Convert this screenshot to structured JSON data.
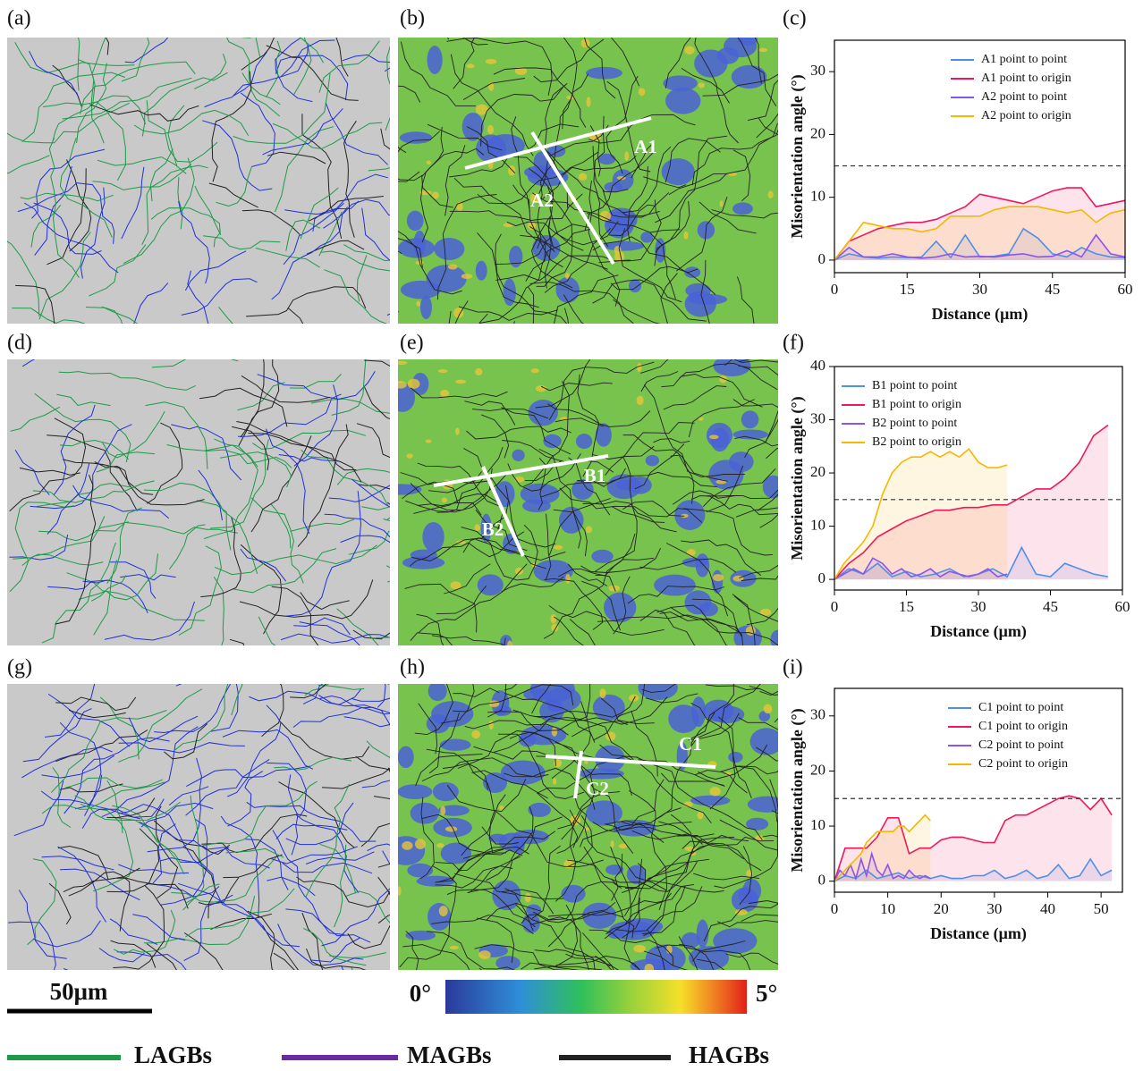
{
  "figure": {
    "panel_labels": [
      "(a)",
      "(b)",
      "(c)",
      "(d)",
      "(e)",
      "(f)",
      "(g)",
      "(h)",
      "(i)"
    ],
    "map_line_labels": [
      "A1",
      "A2",
      "B1",
      "B2",
      "C1",
      "C2"
    ],
    "scale_bar": "50μm",
    "colorbar": {
      "min_label": "0°",
      "max_label": "5°"
    },
    "boundary_legend": [
      {
        "name": "LAGBs",
        "color": "#1f9a48"
      },
      {
        "name": "MAGBs",
        "color": "#6a2aa0"
      },
      {
        "name": "HAGBs",
        "color": "#222222"
      }
    ]
  },
  "chart_data": [
    {
      "type": "line",
      "x_label": "Distance (μm)",
      "y_label": "Misorientation angle (°)",
      "xlim": [
        0,
        60
      ],
      "xticks": [
        0,
        15,
        30,
        45,
        60
      ],
      "ylim": [
        -2,
        35
      ],
      "yticks": [
        0,
        10,
        20,
        30
      ],
      "reference_line": 15,
      "legend": "upper right",
      "series": [
        {
          "name": "A1 point to point",
          "color": "#4f8fe8",
          "x": [
            0,
            3,
            6,
            9,
            12,
            15,
            18,
            21,
            24,
            27,
            30,
            33,
            36,
            39,
            42,
            45,
            48,
            51,
            54,
            57,
            60
          ],
          "values": [
            0,
            1,
            0.5,
            0.3,
            0.5,
            0.4,
            0.5,
            3,
            0.4,
            4,
            0.5,
            0.6,
            1,
            5,
            3.5,
            1,
            0.5,
            2,
            1,
            0.5,
            0.4
          ]
        },
        {
          "name": "A1 point to origin",
          "color": "#f0185a",
          "x": [
            0,
            3,
            6,
            9,
            12,
            15,
            18,
            21,
            24,
            27,
            30,
            33,
            36,
            39,
            42,
            45,
            48,
            51,
            54,
            57,
            60
          ],
          "values": [
            0,
            3,
            4,
            5,
            5.5,
            6,
            6,
            6.5,
            7.5,
            8.5,
            10.5,
            10,
            9.5,
            9,
            10,
            11,
            11.5,
            11.5,
            8.5,
            9,
            9.5
          ]
        },
        {
          "name": "A2 point to point",
          "color": "#8855f0",
          "x": [
            0,
            3,
            6,
            9,
            12,
            15,
            18,
            21,
            24,
            27,
            30,
            33,
            36,
            39,
            42,
            45,
            48,
            51,
            54,
            57,
            60
          ],
          "values": [
            0,
            2,
            0.5,
            0.5,
            1,
            0.5,
            0.3,
            0.5,
            1,
            0.5,
            0.6,
            0.5,
            0.8,
            1,
            0.5,
            0.6,
            1.5,
            0.5,
            4,
            1,
            0.5
          ]
        },
        {
          "name": "A2 point to origin",
          "color": "#f5b800",
          "x": [
            0,
            3,
            6,
            9,
            12,
            15,
            18,
            21,
            24,
            27,
            30,
            33,
            36,
            39,
            42,
            45,
            48,
            51,
            54,
            57,
            60
          ],
          "values": [
            0,
            3,
            6,
            5.5,
            5,
            5,
            4.5,
            5,
            7,
            7,
            7,
            8,
            8.5,
            8.5,
            8.5,
            8,
            7.5,
            8,
            6,
            7.5,
            8
          ]
        }
      ]
    },
    {
      "type": "line",
      "x_label": "Distance (μm)",
      "y_label": "Misorientation angle (°)",
      "xlim": [
        0,
        60
      ],
      "xticks": [
        0,
        15,
        30,
        45,
        60
      ],
      "ylim": [
        -2,
        40
      ],
      "yticks": [
        0,
        10,
        20,
        30,
        40
      ],
      "reference_line": 15,
      "legend": "upper left",
      "series": [
        {
          "name": "B1 point to point",
          "color": "#4f8fe8",
          "x": [
            0,
            3,
            6,
            9,
            12,
            15,
            18,
            21,
            24,
            27,
            30,
            33,
            36,
            39,
            42,
            45,
            48,
            51,
            54,
            57
          ],
          "values": [
            0,
            2,
            1,
            3,
            0.5,
            1.5,
            0.5,
            1,
            2,
            0.5,
            1,
            2,
            0.5,
            6,
            1,
            0.5,
            3,
            2,
            1,
            0.5
          ]
        },
        {
          "name": "B1 point to origin",
          "color": "#f0185a",
          "x": [
            0,
            3,
            6,
            9,
            12,
            15,
            18,
            21,
            24,
            27,
            30,
            33,
            36,
            39,
            42,
            45,
            48,
            51,
            54,
            57
          ],
          "values": [
            0,
            3,
            5,
            8,
            9.5,
            11,
            12,
            13,
            13,
            13.5,
            13.5,
            14,
            14,
            15.5,
            17,
            17,
            19,
            22,
            27,
            29
          ]
        },
        {
          "name": "B2 point to point",
          "color": "#8855f0",
          "x": [
            0,
            2,
            4,
            6,
            8,
            10,
            12,
            14,
            16,
            18,
            20,
            22,
            24,
            26,
            28,
            30,
            32,
            34,
            36
          ],
          "values": [
            0,
            1,
            2,
            1,
            4,
            3,
            1,
            2,
            0.5,
            1,
            2,
            0.5,
            1.5,
            1,
            0.5,
            1,
            2,
            0.5,
            1
          ]
        },
        {
          "name": "B2 point to origin",
          "color": "#f5b800",
          "x": [
            0,
            2,
            4,
            6,
            8,
            10,
            12,
            14,
            16,
            18,
            20,
            22,
            24,
            26,
            28,
            30,
            32,
            34,
            36
          ],
          "values": [
            0,
            3,
            5,
            7,
            10,
            16,
            20,
            22,
            23,
            23,
            24,
            23,
            24,
            23,
            24.5,
            22,
            21,
            21,
            21.5
          ]
        }
      ]
    },
    {
      "type": "line",
      "x_label": "Distance (μm)",
      "y_label": "Misorientation angle (°)",
      "xlim": [
        0,
        54
      ],
      "xticks": [
        0,
        10,
        20,
        30,
        40,
        50
      ],
      "ylim": [
        -2,
        35
      ],
      "yticks": [
        0,
        10,
        20,
        30
      ],
      "reference_line": 15,
      "legend": "upper right",
      "series": [
        {
          "name": "C1 point to point",
          "color": "#4f8fe8",
          "x": [
            0,
            2,
            4,
            6,
            8,
            10,
            12,
            14,
            16,
            18,
            20,
            22,
            24,
            26,
            28,
            30,
            32,
            34,
            36,
            38,
            40,
            42,
            44,
            46,
            48,
            50,
            52
          ],
          "values": [
            0,
            1,
            0.5,
            2,
            0.5,
            1,
            1.5,
            0.5,
            1,
            0.5,
            1,
            0.5,
            0.5,
            1,
            1,
            2,
            0.5,
            1,
            2,
            0.5,
            1,
            3,
            0.5,
            1,
            4,
            1,
            2
          ]
        },
        {
          "name": "C1 point to origin",
          "color": "#f0185a",
          "x": [
            0,
            2,
            4,
            6,
            8,
            10,
            12,
            14,
            16,
            18,
            20,
            22,
            24,
            26,
            28,
            30,
            32,
            34,
            36,
            38,
            40,
            42,
            44,
            46,
            48,
            50,
            52
          ],
          "values": [
            0,
            6,
            6,
            6,
            8,
            11.5,
            11.5,
            5,
            6,
            6,
            7.5,
            8,
            8,
            7.5,
            7,
            7,
            11,
            12,
            12,
            13,
            14,
            15,
            15.5,
            15,
            13,
            15,
            12
          ]
        },
        {
          "name": "C2 point to point",
          "color": "#8855f0",
          "x": [
            0,
            1,
            2,
            3,
            4,
            5,
            6,
            7,
            8,
            9,
            10,
            11,
            12,
            13,
            14,
            15,
            16,
            17,
            18
          ],
          "values": [
            0,
            2,
            1,
            3,
            0.5,
            4,
            1,
            5,
            2,
            1,
            3,
            0.5,
            1,
            0.5,
            2,
            1,
            0.5,
            1,
            0.5
          ]
        },
        {
          "name": "C2 point to origin",
          "color": "#f5b800",
          "x": [
            0,
            1,
            2,
            3,
            4,
            5,
            6,
            7,
            8,
            9,
            10,
            11,
            12,
            13,
            14,
            15,
            16,
            17,
            18
          ],
          "values": [
            0,
            1,
            2,
            3,
            4,
            5,
            7,
            8,
            9,
            9,
            9,
            9,
            10,
            10,
            9,
            10,
            11,
            12,
            11
          ]
        }
      ]
    }
  ]
}
